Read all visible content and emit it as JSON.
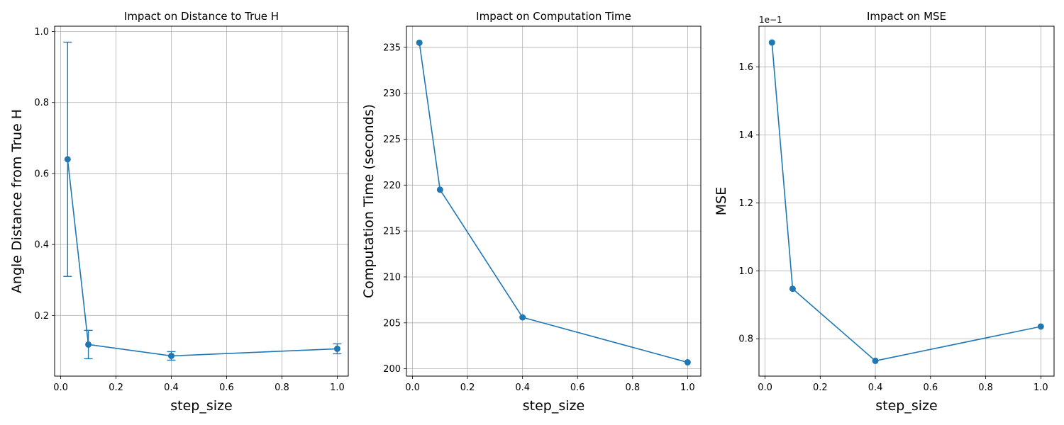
{
  "chart_data": [
    {
      "type": "line",
      "title": "Impact on Distance to True H",
      "xlabel": "step_size",
      "ylabel": "Angle Distance from True H",
      "xlim": [
        -0.022,
        1.04
      ],
      "ylim": [
        0.029,
        1.015
      ],
      "x_ticks": [
        0.0,
        0.2,
        0.4,
        0.6,
        0.8,
        1.0
      ],
      "x_tick_labels": [
        "0.0",
        "0.2",
        "0.4",
        "0.6",
        "0.8",
        "1.0"
      ],
      "y_ticks": [
        0.2,
        0.4,
        0.6,
        0.8,
        1.0
      ],
      "y_tick_labels": [
        "0.2",
        "0.4",
        "0.6",
        "0.8",
        "1.0"
      ],
      "grid": true,
      "color": "#1f77b4",
      "series": [
        {
          "x": [
            0.025,
            0.1,
            0.4,
            1.0
          ],
          "y": [
            0.64,
            0.118,
            0.086,
            0.106
          ],
          "error_low": [
            0.31,
            0.078,
            0.074,
            0.092
          ],
          "error_high": [
            0.97,
            0.158,
            0.098,
            0.12
          ]
        }
      ]
    },
    {
      "type": "line",
      "title": "Impact on Computation Time",
      "xlabel": "step_size",
      "ylabel": "Computation Time (seconds)",
      "xlim": [
        -0.022,
        1.048
      ],
      "ylim": [
        199.2,
        237.3
      ],
      "x_ticks": [
        0.0,
        0.2,
        0.4,
        0.6,
        0.8,
        1.0
      ],
      "x_tick_labels": [
        "0.0",
        "0.2",
        "0.4",
        "0.6",
        "0.8",
        "1.0"
      ],
      "y_ticks": [
        200,
        205,
        210,
        215,
        220,
        225,
        230,
        235
      ],
      "y_tick_labels": [
        "200",
        "205",
        "210",
        "215",
        "220",
        "225",
        "230",
        "235"
      ],
      "grid": true,
      "color": "#1f77b4",
      "series": [
        {
          "x": [
            0.025,
            0.1,
            0.4,
            1.0
          ],
          "y": [
            235.5,
            219.5,
            205.6,
            200.7
          ]
        }
      ]
    },
    {
      "type": "line",
      "title": "Impact on MSE",
      "xlabel": "step_size",
      "ylabel": "MSE",
      "offset_label": "1e−1",
      "xlim": [
        -0.022,
        1.048
      ],
      "ylim": [
        0.69,
        1.72
      ],
      "x_ticks": [
        0.0,
        0.2,
        0.4,
        0.6,
        0.8,
        1.0
      ],
      "x_tick_labels": [
        "0.0",
        "0.2",
        "0.4",
        "0.6",
        "0.8",
        "1.0"
      ],
      "y_ticks": [
        0.8,
        1.0,
        1.2,
        1.4,
        1.6
      ],
      "y_tick_labels": [
        "0.8",
        "1.0",
        "1.2",
        "1.4",
        "1.6"
      ],
      "grid": true,
      "color": "#1f77b4",
      "series": [
        {
          "x": [
            0.025,
            0.1,
            0.4,
            1.0
          ],
          "y": [
            1.672,
            0.947,
            0.735,
            0.836
          ]
        }
      ]
    }
  ]
}
